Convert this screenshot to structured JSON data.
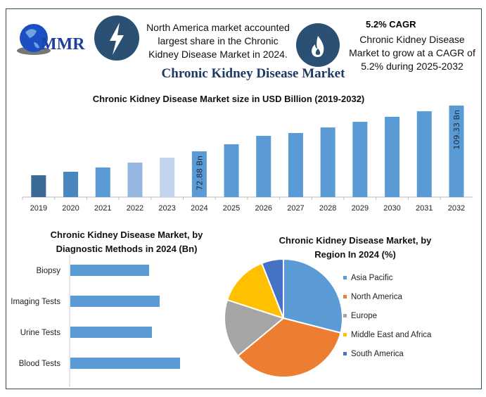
{
  "logo": {
    "text": "MMR"
  },
  "highlights": [
    {
      "icon": "lightning-icon",
      "text": "North America market accounted largest share in the Chronic Kidney Disease Market in 2024."
    },
    {
      "icon": "flame-icon",
      "heading": "5.2% CAGR",
      "text": "Chronic Kidney Disease Market to grow at a CAGR of 5.2% during 2025-2032"
    }
  ],
  "main_title": "Chronic Kidney Disease Market",
  "colors": {
    "accent": "#1f3864",
    "icon_circle": "#2a5073",
    "bar": "#5b9bd5"
  },
  "chart_data": [
    {
      "type": "bar",
      "title": "Chronic Kidney Disease Market size in USD Billion (2019-2032)",
      "categories": [
        "2019",
        "2020",
        "2021",
        "2022",
        "2023",
        "2024",
        "2025",
        "2026",
        "2027",
        "2028",
        "2029",
        "2030",
        "2031",
        "2032"
      ],
      "values": [
        53.8,
        56.6,
        60.0,
        63.9,
        67.8,
        72.88,
        78.5,
        85.2,
        87.5,
        91.9,
        96.4,
        100.4,
        104.8,
        109.33
      ],
      "colors": [
        "#3c6a97",
        "#4a86bf",
        "#5b9bd5",
        "#95b6df",
        "#c2d5ec",
        "#5b9bd5",
        "#5b9bd5",
        "#5b9bd5",
        "#5b9bd5",
        "#5b9bd5",
        "#5b9bd5",
        "#5b9bd5",
        "#5b9bd5",
        "#5b9bd5"
      ],
      "data_labels": {
        "2024": "72.88 Bn",
        "2032": "109.33 Bn"
      },
      "ylim": [
        36,
        110
      ]
    },
    {
      "type": "bar",
      "orientation": "horizontal",
      "title": "Chronic Kidney Disease Market, by Diagnostic Methods in 2024 (Bn)",
      "categories": [
        "Biopsy",
        "Imaging Tests",
        "Urine Tests",
        "Blood Tests"
      ],
      "values": [
        112,
        127,
        116,
        156
      ]
    },
    {
      "type": "pie",
      "title": "Chronic Kidney Disease Market, by Region In 2024 (%)",
      "legend_position": "right",
      "slices": [
        {
          "name": "Asia Pacific",
          "value": 29,
          "color": "#5b9bd5"
        },
        {
          "name": "North America",
          "value": 35,
          "color": "#ed7d31"
        },
        {
          "name": "Europe",
          "value": 16,
          "color": "#a5a5a5"
        },
        {
          "name": "Middle East and Africa",
          "value": 14,
          "color": "#ffc000"
        },
        {
          "name": "South America",
          "value": 6,
          "color": "#4472c4"
        }
      ]
    }
  ]
}
